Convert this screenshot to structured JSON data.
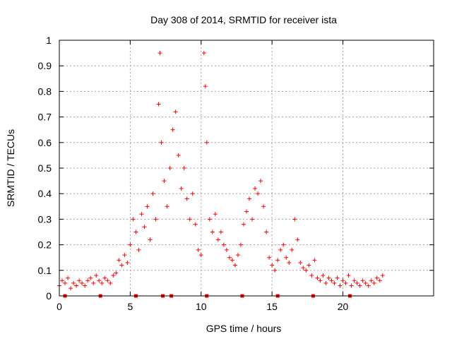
{
  "chart_data": {
    "type": "scatter",
    "title": "Day 308 of 2014, SRMTID for receiver ista",
    "xlabel": "GPS time / hours",
    "ylabel": "SRMTID / TECUs",
    "xlim": [
      0,
      26.4
    ],
    "ylim": [
      0,
      1
    ],
    "grid": true,
    "x_ticks": [
      0,
      5,
      10,
      15,
      20
    ],
    "x_tick_labels": [
      "0",
      "5",
      "10",
      "15",
      "20"
    ],
    "y_ticks": [
      0,
      0.1,
      0.2,
      0.3,
      0.4,
      0.5,
      0.6,
      0.7,
      0.8,
      0.9,
      1
    ],
    "y_tick_labels": [
      "0",
      "0.1",
      "0.2",
      "0.3",
      "0.4",
      "0.5",
      "0.6",
      "0.7",
      "0.8",
      "0.9",
      "1"
    ],
    "marker": "+",
    "marker_color": "#ff0000",
    "series": [
      {
        "name": "SRMTID",
        "points": [
          [
            0.0,
            0.04
          ],
          [
            0.2,
            0.06
          ],
          [
            0.4,
            0.05
          ],
          [
            0.6,
            0.07
          ],
          [
            0.8,
            0.03
          ],
          [
            1.0,
            0.05
          ],
          [
            1.2,
            0.04
          ],
          [
            1.4,
            0.06
          ],
          [
            1.6,
            0.05
          ],
          [
            1.8,
            0.04
          ],
          [
            2.0,
            0.06
          ],
          [
            2.2,
            0.07
          ],
          [
            2.4,
            0.05
          ],
          [
            2.6,
            0.08
          ],
          [
            2.8,
            0.06
          ],
          [
            3.0,
            0.05
          ],
          [
            3.2,
            0.07
          ],
          [
            3.4,
            0.06
          ],
          [
            3.6,
            0.05
          ],
          [
            3.8,
            0.08
          ],
          [
            4.0,
            0.09
          ],
          [
            4.2,
            0.14
          ],
          [
            4.4,
            0.12
          ],
          [
            4.6,
            0.16
          ],
          [
            4.8,
            0.13
          ],
          [
            5.0,
            0.2
          ],
          [
            5.2,
            0.3
          ],
          [
            5.4,
            0.25
          ],
          [
            5.6,
            0.18
          ],
          [
            5.8,
            0.32
          ],
          [
            6.0,
            0.27
          ],
          [
            6.2,
            0.35
          ],
          [
            6.4,
            0.22
          ],
          [
            6.6,
            0.4
          ],
          [
            6.8,
            0.3
          ],
          [
            7.0,
            0.75
          ],
          [
            7.1,
            0.95
          ],
          [
            7.2,
            0.6
          ],
          [
            7.4,
            0.45
          ],
          [
            7.6,
            0.35
          ],
          [
            7.8,
            0.5
          ],
          [
            8.0,
            0.65
          ],
          [
            8.2,
            0.72
          ],
          [
            8.4,
            0.55
          ],
          [
            8.6,
            0.42
          ],
          [
            8.8,
            0.5
          ],
          [
            9.0,
            0.38
          ],
          [
            9.2,
            0.3
          ],
          [
            9.4,
            0.4
          ],
          [
            9.6,
            0.28
          ],
          [
            9.8,
            0.18
          ],
          [
            10.0,
            0.16
          ],
          [
            10.2,
            0.95
          ],
          [
            10.3,
            0.82
          ],
          [
            10.4,
            0.6
          ],
          [
            10.6,
            0.3
          ],
          [
            10.8,
            0.25
          ],
          [
            11.0,
            0.32
          ],
          [
            11.2,
            0.22
          ],
          [
            11.4,
            0.25
          ],
          [
            11.6,
            0.2
          ],
          [
            11.8,
            0.18
          ],
          [
            12.0,
            0.15
          ],
          [
            12.2,
            0.14
          ],
          [
            12.4,
            0.12
          ],
          [
            12.6,
            0.16
          ],
          [
            12.8,
            0.2
          ],
          [
            13.0,
            0.28
          ],
          [
            13.2,
            0.33
          ],
          [
            13.4,
            0.38
          ],
          [
            13.6,
            0.3
          ],
          [
            13.8,
            0.42
          ],
          [
            14.0,
            0.4
          ],
          [
            14.2,
            0.45
          ],
          [
            14.4,
            0.35
          ],
          [
            14.6,
            0.25
          ],
          [
            14.8,
            0.15
          ],
          [
            15.0,
            0.12
          ],
          [
            15.2,
            0.1
          ],
          [
            15.4,
            0.14
          ],
          [
            15.6,
            0.18
          ],
          [
            15.8,
            0.2
          ],
          [
            16.0,
            0.15
          ],
          [
            16.2,
            0.13
          ],
          [
            16.4,
            0.18
          ],
          [
            16.6,
            0.3
          ],
          [
            16.8,
            0.22
          ],
          [
            17.0,
            0.13
          ],
          [
            17.2,
            0.11
          ],
          [
            17.4,
            0.1
          ],
          [
            17.6,
            0.12
          ],
          [
            17.8,
            0.08
          ],
          [
            18.0,
            0.14
          ],
          [
            18.2,
            0.07
          ],
          [
            18.4,
            0.06
          ],
          [
            18.6,
            0.08
          ],
          [
            18.8,
            0.05
          ],
          [
            19.0,
            0.07
          ],
          [
            19.2,
            0.06
          ],
          [
            19.4,
            0.05
          ],
          [
            19.6,
            0.07
          ],
          [
            19.8,
            0.04
          ],
          [
            20.0,
            0.06
          ],
          [
            20.2,
            0.05
          ],
          [
            20.4,
            0.08
          ],
          [
            20.6,
            0.04
          ],
          [
            20.8,
            0.06
          ],
          [
            21.0,
            0.05
          ],
          [
            21.2,
            0.04
          ],
          [
            21.4,
            0.06
          ],
          [
            21.6,
            0.05
          ],
          [
            21.8,
            0.04
          ],
          [
            22.0,
            0.06
          ],
          [
            22.2,
            0.05
          ],
          [
            22.4,
            0.07
          ],
          [
            22.6,
            0.06
          ],
          [
            22.8,
            0.08
          ]
        ]
      }
    ],
    "baseline_markers": [
      0.4,
      2.9,
      5.4,
      7.3,
      7.9,
      10.4,
      12.9,
      15.4,
      17.9,
      20.5
    ]
  }
}
